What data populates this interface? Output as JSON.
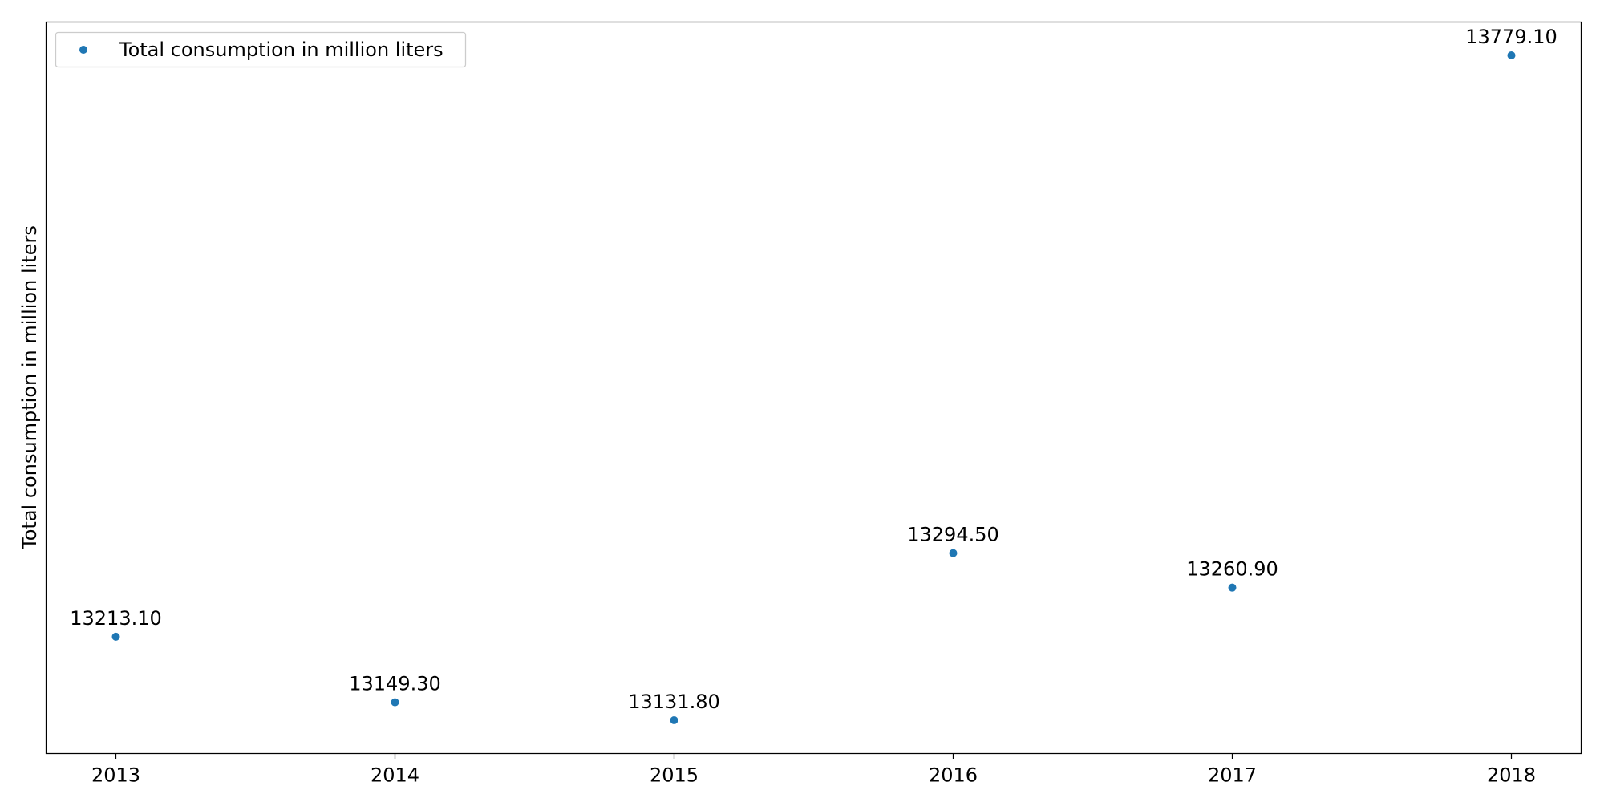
{
  "chart_data": {
    "type": "scatter",
    "title": "",
    "xlabel": "",
    "ylabel": "Total consumption in million liters",
    "x": [
      2013,
      2014,
      2015,
      2016,
      2017,
      2018
    ],
    "series": [
      {
        "name": "Total consumption in million liters",
        "color": "#1f77b4",
        "values": [
          13213.1,
          13149.3,
          13131.8,
          13294.5,
          13260.9,
          13779.1
        ],
        "labels": [
          "13213.10",
          "13149.30",
          "13131.80",
          "13294.50",
          "13260.90",
          "13779.10"
        ]
      }
    ],
    "xticks": [
      "2013",
      "2014",
      "2015",
      "2016",
      "2017",
      "2018"
    ],
    "xlim": [
      2012.75,
      2018.25
    ],
    "ylim": [
      13099.4,
      13811.5
    ],
    "yticks_visible": false,
    "grid": false,
    "legend": {
      "position": "top-left"
    }
  }
}
